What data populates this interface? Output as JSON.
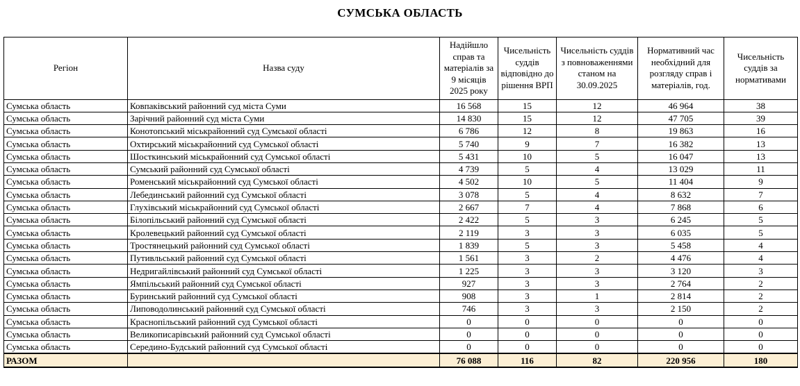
{
  "title": "СУМСЬКА ОБЛАСТЬ",
  "colors": {
    "border": "#000000",
    "total_row_bg": "#FCEFD4"
  },
  "table": {
    "columns": [
      "Регіон",
      "Назва суду",
      "Надійшло справ та матеріалів за 9 місяців 2025 року",
      "Чисельність суддів відповідно до рішення ВРП",
      "Чисельність суддів з повноваженнями станом на 30.09.2025",
      "Нормативний час необхідний для розгляду справ і матеріалів, год.",
      "Чисельність суддів за нормативами"
    ],
    "rows": [
      [
        "Сумська область",
        "Ковпаківський районний суд міста Суми",
        "16 568",
        "15",
        "12",
        "46 964",
        "38"
      ],
      [
        "Сумська область",
        "Зарічний районний суд міста Суми",
        "14 830",
        "15",
        "12",
        "47 705",
        "39"
      ],
      [
        "Сумська область",
        "Конотопський міськрайонний суд Сумської області",
        "6 786",
        "12",
        "8",
        "19 863",
        "16"
      ],
      [
        "Сумська область",
        "Охтирський міськрайонний суд Сумської області",
        "5 740",
        "9",
        "7",
        "16 382",
        "13"
      ],
      [
        "Сумська область",
        "Шосткинський міськрайонний суд Сумської області",
        "5 431",
        "10",
        "5",
        "16 047",
        "13"
      ],
      [
        "Сумська область",
        "Сумський районний суд Сумської області",
        "4 739",
        "5",
        "4",
        "13 029",
        "11"
      ],
      [
        "Сумська область",
        "Роменський міськрайонний суд Сумської області",
        "4 502",
        "10",
        "5",
        "11 404",
        "9"
      ],
      [
        "Сумська область",
        "Лебединський районний суд Сумської області",
        "3 078",
        "5",
        "4",
        "8 632",
        "7"
      ],
      [
        "Сумська область",
        "Глухівський міськрайонний суд Сумської області",
        "2 667",
        "7",
        "4",
        "7 868",
        "6"
      ],
      [
        "Сумська область",
        "Білопільський районний суд Сумської області",
        "2 422",
        "5",
        "3",
        "6 245",
        "5"
      ],
      [
        "Сумська область",
        "Кролевецький районний суд Сумської області",
        "2 119",
        "3",
        "3",
        "6 035",
        "5"
      ],
      [
        "Сумська область",
        "Тростянецький районний суд Сумської області",
        "1 839",
        "5",
        "3",
        "5 458",
        "4"
      ],
      [
        "Сумська область",
        "Путивльський районний суд Сумської області",
        "1 561",
        "3",
        "2",
        "4 476",
        "4"
      ],
      [
        "Сумська область",
        "Недригайлівський районний суд Сумської області",
        "1 225",
        "3",
        "3",
        "3 120",
        "3"
      ],
      [
        "Сумська область",
        "Ямпільський районний суд Сумської області",
        "927",
        "3",
        "3",
        "2 764",
        "2"
      ],
      [
        "Сумська область",
        "Буринський районний суд Сумської області",
        "908",
        "3",
        "1",
        "2 814",
        "2"
      ],
      [
        "Сумська область",
        "Липоводолинський районний суд Сумської області",
        "746",
        "3",
        "3",
        "2 150",
        "2"
      ],
      [
        "Сумська область",
        "Краснопільський районний суд Сумської області",
        "0",
        "0",
        "0",
        "0",
        "0"
      ],
      [
        "Сумська область",
        "Великописарівський районний суд Сумської області",
        "0",
        "0",
        "0",
        "0",
        "0"
      ],
      [
        "Сумська область",
        "Середино-Будський районний суд Сумської області",
        "0",
        "0",
        "0",
        "0",
        "0"
      ]
    ],
    "total": {
      "label": "РАЗОМ",
      "values": [
        "76 088",
        "116",
        "82",
        "220 956",
        "180"
      ]
    }
  }
}
